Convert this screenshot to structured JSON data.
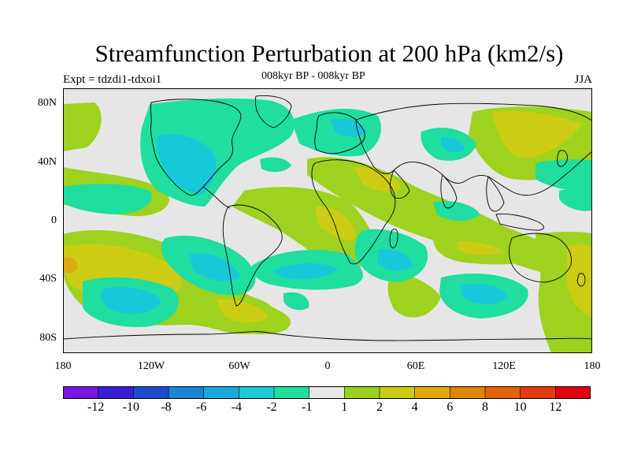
{
  "title": "Streamfunction Perturbation at 200 hPa (km2/s)",
  "subtitle": "008kyr BP - 008kyr BP",
  "left_label": "Expt = tdzdi1-tdxoi1",
  "right_label": "JJA",
  "y_ticks": [
    "80N",
    "40N",
    "0",
    "40S",
    "80S"
  ],
  "x_ticks": [
    "180",
    "120W",
    "60W",
    "0",
    "60E",
    "120E",
    "180"
  ],
  "colorbar": {
    "colors": [
      "#7b16e0",
      "#3a1ed6",
      "#1f4ccf",
      "#1a84d6",
      "#17aad8",
      "#1ccbd6",
      "#1ede9d",
      "#e6e6e6",
      "#9bd11d",
      "#c9cc12",
      "#e0aa0c",
      "#e28608",
      "#e0620a",
      "#e03a0e",
      "#e00010"
    ],
    "labels": [
      "-12",
      "-10",
      "-8",
      "-6",
      "-4",
      "-2",
      "-1",
      "1",
      "2",
      "4",
      "6",
      "8",
      "10",
      "12"
    ]
  },
  "map": {
    "background": "#e6e6e6",
    "level_colors": {
      "-4": "#17c8d8",
      "-2": "#1fdea0",
      "2": "#9ed21e",
      "4": "#cccc14",
      "6": "#e0a812"
    }
  }
}
